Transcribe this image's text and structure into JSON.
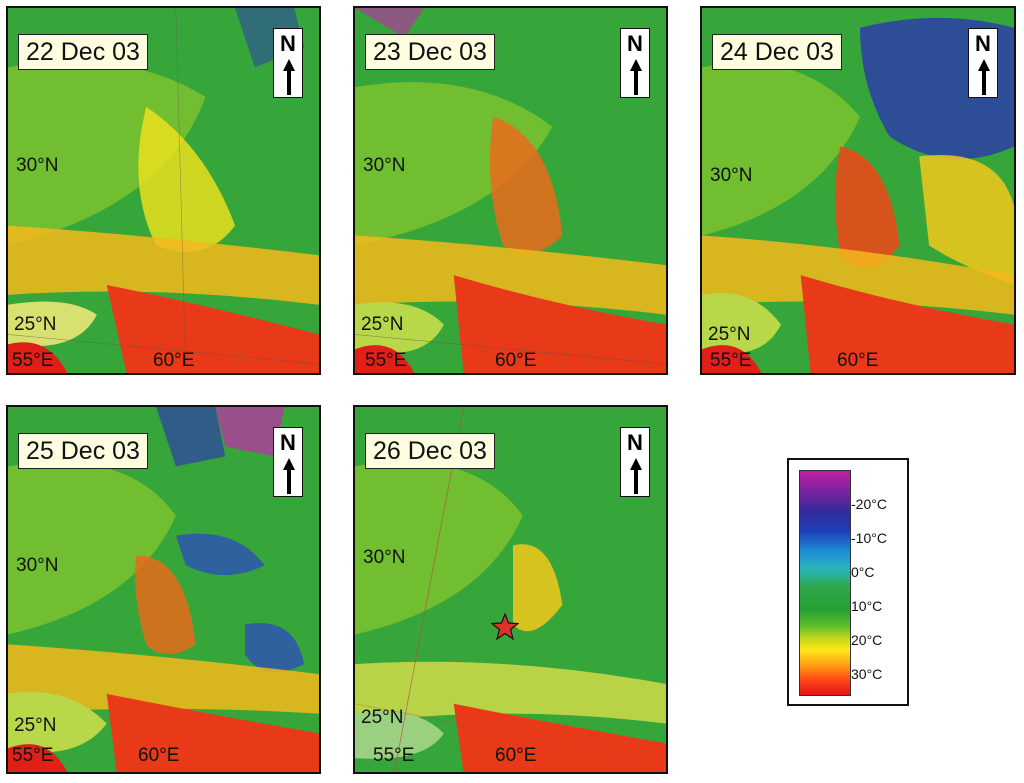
{
  "panels": [
    {
      "date": "22 Dec 03",
      "lat30": "30°N",
      "lat25": "25°N",
      "lon55": "55°E",
      "lon60": "60°E"
    },
    {
      "date": "23 Dec 03",
      "lat30": "30°N",
      "lat25": "25°N",
      "lon55": "55°E",
      "lon60": "60°E"
    },
    {
      "date": "24 Dec 03",
      "lat30": "30°N",
      "lat25": "25°N",
      "lon55": "55°E",
      "lon60": "60°E"
    },
    {
      "date": "25 Dec 03",
      "lat30": "30°N",
      "lat25": "25°N",
      "lon55": "55°E",
      "lon60": "60°E"
    },
    {
      "date": "26 Dec 03",
      "lat30": "30°N",
      "lat25": "25°N",
      "lon55": "55°E",
      "lon60": "60°E"
    }
  ],
  "north_label": "N",
  "legend": {
    "ticks": [
      "-20°C",
      "-10°C",
      "0°C",
      "10°C",
      "20°C",
      "30°C"
    ]
  },
  "colors": {
    "cold_magenta": "#c01fa5",
    "cold_blue": "#1e40b8",
    "zero_cyan": "#2ab6b8",
    "mid_green": "#2da84a",
    "warm_yellow": "#ffe81a",
    "hot_red": "#e01414"
  },
  "marker": "star-icon"
}
